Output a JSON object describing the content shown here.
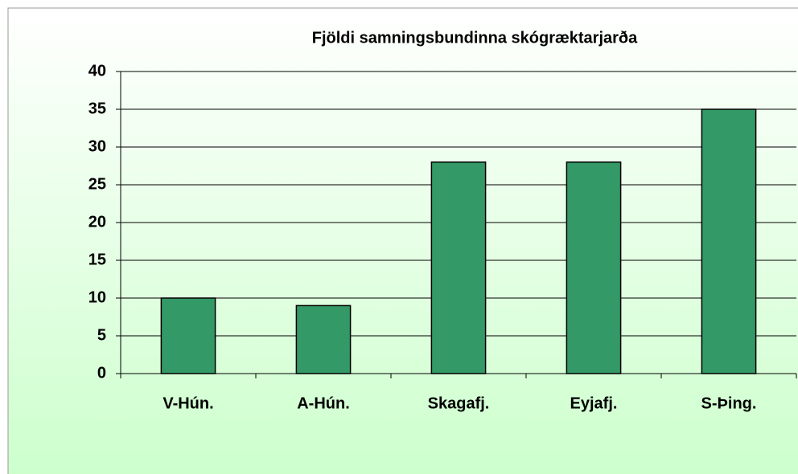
{
  "chart_data": {
    "type": "bar",
    "title": "Fjöldi samningsbundinna skógræktarjarða",
    "categories": [
      "V-Hún.",
      "A-Hún.",
      "Skagafj.",
      "Eyjafj.",
      "S-Þing."
    ],
    "values": [
      10,
      9,
      28,
      28,
      35
    ],
    "color": "#339966",
    "ylim": [
      0,
      40
    ],
    "yticks": [
      0,
      5,
      10,
      15,
      20,
      25,
      30,
      35,
      40
    ],
    "grid": true
  }
}
